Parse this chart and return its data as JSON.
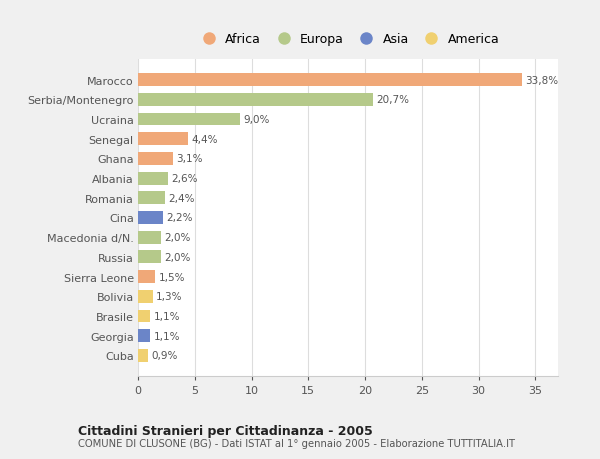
{
  "countries": [
    "Marocco",
    "Serbia/Montenegro",
    "Ucraina",
    "Senegal",
    "Ghana",
    "Albania",
    "Romania",
    "Cina",
    "Macedonia d/N.",
    "Russia",
    "Sierra Leone",
    "Bolivia",
    "Brasile",
    "Georgia",
    "Cuba"
  ],
  "values": [
    33.8,
    20.7,
    9.0,
    4.4,
    3.1,
    2.6,
    2.4,
    2.2,
    2.0,
    2.0,
    1.5,
    1.3,
    1.1,
    1.1,
    0.9
  ],
  "labels": [
    "33,8%",
    "20,7%",
    "9,0%",
    "4,4%",
    "3,1%",
    "2,6%",
    "2,4%",
    "2,2%",
    "2,0%",
    "2,0%",
    "1,5%",
    "1,3%",
    "1,1%",
    "1,1%",
    "0,9%"
  ],
  "colors": [
    "#f0a878",
    "#b5c98a",
    "#b5c98a",
    "#f0a878",
    "#f0a878",
    "#b5c98a",
    "#b5c98a",
    "#6b85c8",
    "#b5c98a",
    "#b5c98a",
    "#f0a878",
    "#f0d070",
    "#f0d070",
    "#6b85c8",
    "#f0d070"
  ],
  "legend_labels": [
    "Africa",
    "Europa",
    "Asia",
    "America"
  ],
  "legend_colors": [
    "#f0a878",
    "#b5c98a",
    "#6b85c8",
    "#f0d070"
  ],
  "title": "Cittadini Stranieri per Cittadinanza - 2005",
  "subtitle": "COMUNE DI CLUSONE (BG) - Dati ISTAT al 1° gennaio 2005 - Elaborazione TUTTITALIA.IT",
  "xlim": [
    0,
    37
  ],
  "xticks": [
    0,
    5,
    10,
    15,
    20,
    25,
    30,
    35
  ],
  "bg_color": "#f0f0f0",
  "plot_bg_color": "#ffffff"
}
